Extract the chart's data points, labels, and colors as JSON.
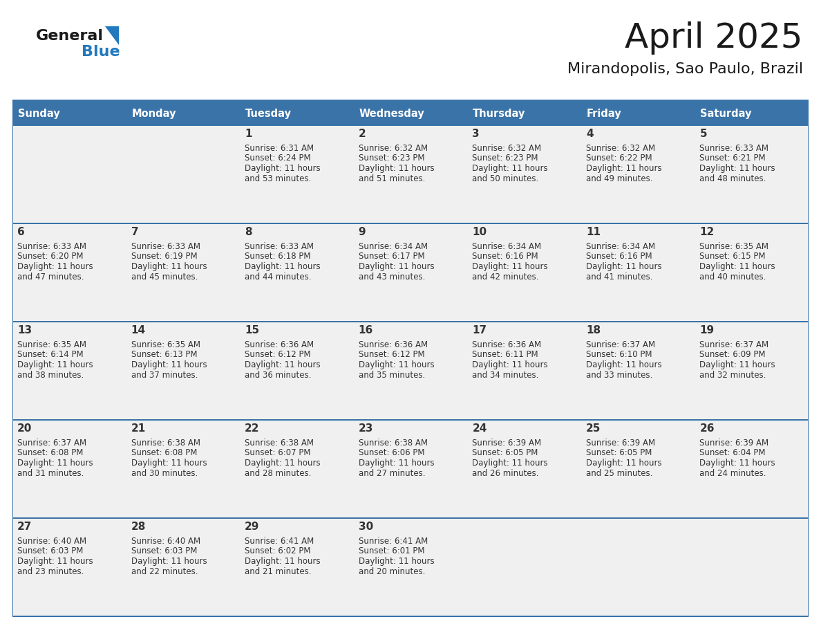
{
  "title": "April 2025",
  "subtitle": "Mirandopolis, Sao Paulo, Brazil",
  "header_bg_color": "#3a73a8",
  "header_text_color": "#ffffff",
  "cell_bg_color": "#f0f0f0",
  "day_number_color": "#333333",
  "day_text_color": "#333333",
  "days_of_week": [
    "Sunday",
    "Monday",
    "Tuesday",
    "Wednesday",
    "Thursday",
    "Friday",
    "Saturday"
  ],
  "logo_color1": "#1a1a1a",
  "logo_color2": "#2279bd",
  "separator_color": "#3a73a8",
  "title_color": "#1a1a1a",
  "subtitle_color": "#1a1a1a",
  "border_color": "#3a73a8",
  "calendar_data": [
    [
      {
        "day": 0,
        "info": ""
      },
      {
        "day": 0,
        "info": ""
      },
      {
        "day": 1,
        "info": "Sunrise: 6:31 AM\nSunset: 6:24 PM\nDaylight: 11 hours\nand 53 minutes."
      },
      {
        "day": 2,
        "info": "Sunrise: 6:32 AM\nSunset: 6:23 PM\nDaylight: 11 hours\nand 51 minutes."
      },
      {
        "day": 3,
        "info": "Sunrise: 6:32 AM\nSunset: 6:23 PM\nDaylight: 11 hours\nand 50 minutes."
      },
      {
        "day": 4,
        "info": "Sunrise: 6:32 AM\nSunset: 6:22 PM\nDaylight: 11 hours\nand 49 minutes."
      },
      {
        "day": 5,
        "info": "Sunrise: 6:33 AM\nSunset: 6:21 PM\nDaylight: 11 hours\nand 48 minutes."
      }
    ],
    [
      {
        "day": 6,
        "info": "Sunrise: 6:33 AM\nSunset: 6:20 PM\nDaylight: 11 hours\nand 47 minutes."
      },
      {
        "day": 7,
        "info": "Sunrise: 6:33 AM\nSunset: 6:19 PM\nDaylight: 11 hours\nand 45 minutes."
      },
      {
        "day": 8,
        "info": "Sunrise: 6:33 AM\nSunset: 6:18 PM\nDaylight: 11 hours\nand 44 minutes."
      },
      {
        "day": 9,
        "info": "Sunrise: 6:34 AM\nSunset: 6:17 PM\nDaylight: 11 hours\nand 43 minutes."
      },
      {
        "day": 10,
        "info": "Sunrise: 6:34 AM\nSunset: 6:16 PM\nDaylight: 11 hours\nand 42 minutes."
      },
      {
        "day": 11,
        "info": "Sunrise: 6:34 AM\nSunset: 6:16 PM\nDaylight: 11 hours\nand 41 minutes."
      },
      {
        "day": 12,
        "info": "Sunrise: 6:35 AM\nSunset: 6:15 PM\nDaylight: 11 hours\nand 40 minutes."
      }
    ],
    [
      {
        "day": 13,
        "info": "Sunrise: 6:35 AM\nSunset: 6:14 PM\nDaylight: 11 hours\nand 38 minutes."
      },
      {
        "day": 14,
        "info": "Sunrise: 6:35 AM\nSunset: 6:13 PM\nDaylight: 11 hours\nand 37 minutes."
      },
      {
        "day": 15,
        "info": "Sunrise: 6:36 AM\nSunset: 6:12 PM\nDaylight: 11 hours\nand 36 minutes."
      },
      {
        "day": 16,
        "info": "Sunrise: 6:36 AM\nSunset: 6:12 PM\nDaylight: 11 hours\nand 35 minutes."
      },
      {
        "day": 17,
        "info": "Sunrise: 6:36 AM\nSunset: 6:11 PM\nDaylight: 11 hours\nand 34 minutes."
      },
      {
        "day": 18,
        "info": "Sunrise: 6:37 AM\nSunset: 6:10 PM\nDaylight: 11 hours\nand 33 minutes."
      },
      {
        "day": 19,
        "info": "Sunrise: 6:37 AM\nSunset: 6:09 PM\nDaylight: 11 hours\nand 32 minutes."
      }
    ],
    [
      {
        "day": 20,
        "info": "Sunrise: 6:37 AM\nSunset: 6:08 PM\nDaylight: 11 hours\nand 31 minutes."
      },
      {
        "day": 21,
        "info": "Sunrise: 6:38 AM\nSunset: 6:08 PM\nDaylight: 11 hours\nand 30 minutes."
      },
      {
        "day": 22,
        "info": "Sunrise: 6:38 AM\nSunset: 6:07 PM\nDaylight: 11 hours\nand 28 minutes."
      },
      {
        "day": 23,
        "info": "Sunrise: 6:38 AM\nSunset: 6:06 PM\nDaylight: 11 hours\nand 27 minutes."
      },
      {
        "day": 24,
        "info": "Sunrise: 6:39 AM\nSunset: 6:05 PM\nDaylight: 11 hours\nand 26 minutes."
      },
      {
        "day": 25,
        "info": "Sunrise: 6:39 AM\nSunset: 6:05 PM\nDaylight: 11 hours\nand 25 minutes."
      },
      {
        "day": 26,
        "info": "Sunrise: 6:39 AM\nSunset: 6:04 PM\nDaylight: 11 hours\nand 24 minutes."
      }
    ],
    [
      {
        "day": 27,
        "info": "Sunrise: 6:40 AM\nSunset: 6:03 PM\nDaylight: 11 hours\nand 23 minutes."
      },
      {
        "day": 28,
        "info": "Sunrise: 6:40 AM\nSunset: 6:03 PM\nDaylight: 11 hours\nand 22 minutes."
      },
      {
        "day": 29,
        "info": "Sunrise: 6:41 AM\nSunset: 6:02 PM\nDaylight: 11 hours\nand 21 minutes."
      },
      {
        "day": 30,
        "info": "Sunrise: 6:41 AM\nSunset: 6:01 PM\nDaylight: 11 hours\nand 20 minutes."
      },
      {
        "day": 0,
        "info": ""
      },
      {
        "day": 0,
        "info": ""
      },
      {
        "day": 0,
        "info": ""
      }
    ]
  ]
}
